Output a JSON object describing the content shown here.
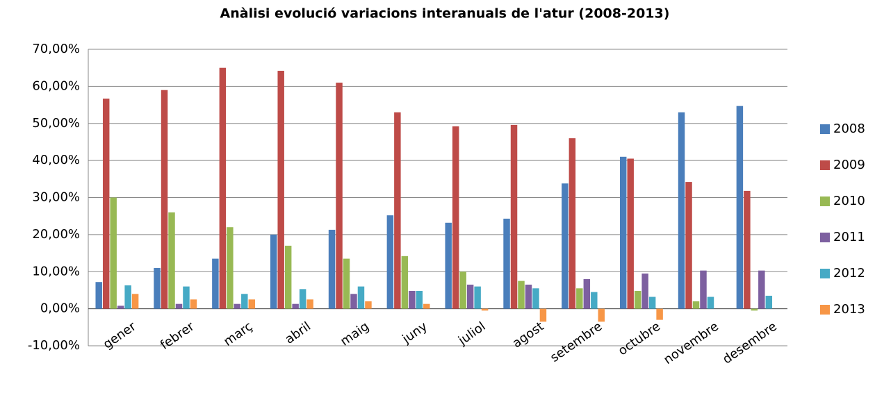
{
  "chart_data": {
    "type": "bar",
    "title": "Anàlisi evolució variacions interanuals de l'atur (2008-2013)",
    "categories": [
      "gener",
      "febrer",
      "març",
      "abril",
      "maig",
      "juny",
      "juliol",
      "agost",
      "setembre",
      "octubre",
      "novembre",
      "desembre"
    ],
    "series": [
      {
        "name": "2008",
        "color": "#4a7ebb",
        "values": [
          7.2,
          11,
          13.5,
          20,
          21.3,
          25.2,
          23.2,
          24.3,
          33.8,
          41,
          53,
          54.7
        ]
      },
      {
        "name": "2009",
        "color": "#be4b48",
        "values": [
          56.7,
          59,
          65,
          64.2,
          61,
          53,
          49.2,
          49.6,
          46,
          40.5,
          34.2,
          31.8
        ]
      },
      {
        "name": "2010",
        "color": "#98b954",
        "values": [
          30,
          26,
          22,
          17,
          13.5,
          14.2,
          10,
          7.5,
          5.5,
          4.8,
          2,
          -0.5
        ]
      },
      {
        "name": "2011",
        "color": "#7d60a0",
        "values": [
          0.8,
          1.3,
          1.3,
          1.3,
          4,
          4.8,
          6.5,
          6.5,
          8,
          9.5,
          10.3,
          10.3
        ]
      },
      {
        "name": "2012",
        "color": "#46aac5",
        "values": [
          6.3,
          6,
          4,
          5.3,
          6,
          4.8,
          6,
          5.5,
          4.5,
          3.2,
          3.2,
          3.5
        ]
      },
      {
        "name": "2013",
        "color": "#f79646",
        "values": [
          4,
          2.5,
          2.5,
          2.5,
          2,
          1.3,
          -0.5,
          -3.5,
          -3.5,
          -3,
          null,
          null
        ]
      }
    ],
    "ylim": [
      -10,
      70
    ],
    "yticks": [
      {
        "value": -10,
        "label": "-10,00%"
      },
      {
        "value": 0,
        "label": "0,00%"
      },
      {
        "value": 10,
        "label": "10,00%"
      },
      {
        "value": 20,
        "label": "20,00%"
      },
      {
        "value": 30,
        "label": "30,00%"
      },
      {
        "value": 40,
        "label": "40,00%"
      },
      {
        "value": 50,
        "label": "50,00%"
      },
      {
        "value": 60,
        "label": "60,00%"
      },
      {
        "value": 70,
        "label": "70,00%"
      }
    ],
    "grid": true,
    "legend": "right"
  }
}
